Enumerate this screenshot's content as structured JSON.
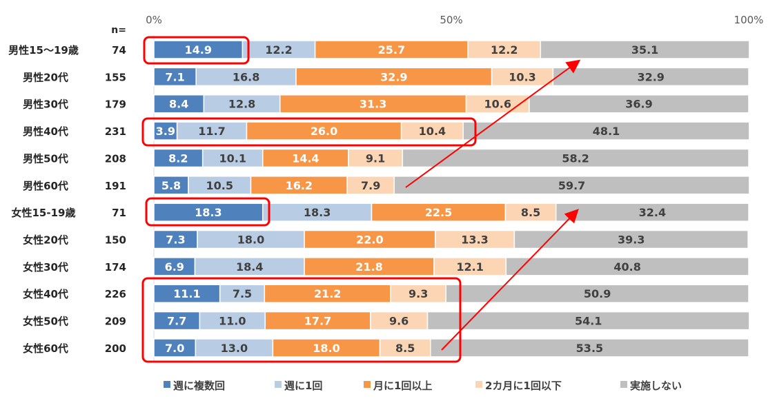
{
  "chart_data": {
    "type": "bar",
    "orientation": "horizontal",
    "stacked": "percent",
    "n_header": "n=",
    "xlim": [
      0,
      100
    ],
    "xticks": [
      "0%",
      "50%",
      "100%"
    ],
    "grid": false,
    "legend_position": "bottom",
    "categories": [
      "男性15～19歳",
      "男性20代",
      "男性30代",
      "男性40代",
      "男性50代",
      "男性60代",
      "女性15-19歳",
      "女性20代",
      "女性30代",
      "女性40代",
      "女性50代",
      "女性60代"
    ],
    "n": [
      74,
      155,
      179,
      231,
      208,
      191,
      71,
      150,
      174,
      226,
      209,
      200
    ],
    "series": [
      {
        "name": "週に複数回",
        "color": "#4f81bd",
        "values": [
          14.9,
          7.1,
          8.4,
          3.9,
          8.2,
          5.8,
          18.3,
          7.3,
          6.9,
          11.1,
          7.7,
          7.0
        ]
      },
      {
        "name": "週に1回",
        "color": "#b8cce4",
        "values": [
          12.2,
          16.8,
          12.8,
          11.7,
          10.1,
          10.5,
          18.3,
          18.0,
          18.4,
          7.5,
          11.0,
          13.0
        ]
      },
      {
        "name": "月に1回以上",
        "color": "#f79646",
        "values": [
          25.7,
          32.9,
          31.3,
          26.0,
          14.4,
          16.2,
          22.5,
          22.0,
          21.8,
          21.2,
          17.7,
          18.0
        ]
      },
      {
        "name": "2カ月に1回以下",
        "color": "#fcd5b5",
        "values": [
          12.2,
          10.3,
          10.6,
          10.4,
          9.1,
          7.9,
          8.5,
          13.3,
          12.1,
          9.3,
          9.6,
          8.5
        ]
      },
      {
        "name": "実施しない",
        "color": "#bfbfbf",
        "values": [
          35.1,
          32.9,
          36.9,
          48.1,
          58.2,
          59.7,
          32.4,
          39.3,
          40.8,
          50.9,
          54.1,
          53.5
        ]
      }
    ],
    "annotation_color": "#ff0000"
  }
}
